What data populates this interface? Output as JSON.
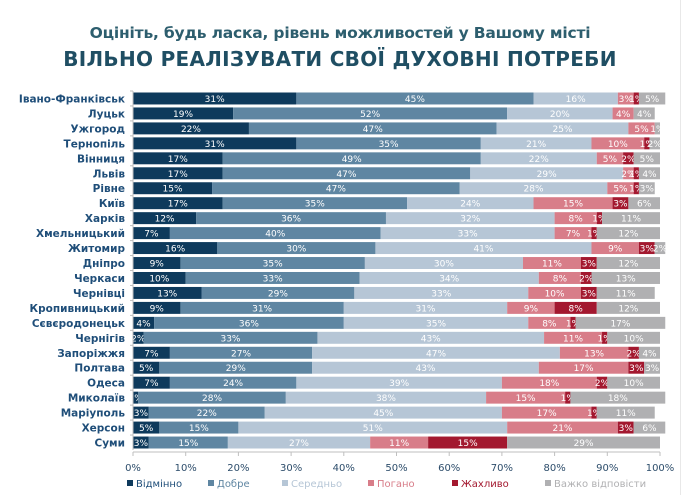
{
  "subtitle": "Оцініть, будь ласка, рівень можливостей у Вашому місті",
  "title": "ВІЛЬНО РЕАЛІЗУВАТИ СВОЇ ДУХОВНІ ПОТРЕБИ",
  "chart_data": {
    "type": "bar",
    "orientation": "horizontal",
    "stacked": "100%",
    "title": "ВІЛЬНО РЕАЛІЗУВАТИ СВОЇ ДУХОВНІ ПОТРЕБИ",
    "subtitle": "Оцініть, будь ласка, рівень можливостей у Вашому місті",
    "xlabel": "",
    "ylabel": "",
    "xlim": [
      0,
      100
    ],
    "x_ticks": [
      "0%",
      "10%",
      "20%",
      "30%",
      "40%",
      "50%",
      "60%",
      "70%",
      "80%",
      "90%",
      "100%"
    ],
    "grid": false,
    "legend_position": "bottom",
    "categories": [
      "Івано-Франківськ",
      "Луцьк",
      "Ужгород",
      "Тернопіль",
      "Вінниця",
      "Львів",
      "Рівне",
      "Київ",
      "Харків",
      "Хмельницький",
      "Житомир",
      "Дніпро",
      "Черкаси",
      "Чернівці",
      "Кропивницький",
      "Сєвєродонецьк",
      "Чернігів",
      "Запоріжжя",
      "Полтава",
      "Одеса",
      "Миколаїв",
      "Маріуполь",
      "Херсон",
      "Суми"
    ],
    "series": [
      {
        "name": "Відмінно",
        "color": "#0e3a5c",
        "label_color": "#1f4e79",
        "values": [
          31,
          19,
          22,
          31,
          17,
          17,
          15,
          17,
          12,
          7,
          16,
          9,
          10,
          13,
          9,
          4,
          2,
          7,
          5,
          7,
          1,
          3,
          5,
          3
        ]
      },
      {
        "name": "Добре",
        "color": "#5f86a2",
        "label_color": "#5f86a2",
        "values": [
          45,
          52,
          47,
          35,
          49,
          47,
          47,
          35,
          36,
          40,
          30,
          35,
          33,
          29,
          31,
          36,
          33,
          27,
          29,
          24,
          28,
          22,
          15,
          15
        ]
      },
      {
        "name": "Середньо",
        "color": "#b6c6d6",
        "label_color": "#b6c6d6",
        "values": [
          16,
          20,
          25,
          21,
          22,
          29,
          28,
          24,
          32,
          33,
          41,
          30,
          34,
          33,
          31,
          35,
          43,
          47,
          43,
          39,
          38,
          45,
          51,
          27
        ]
      },
      {
        "name": "Погано",
        "color": "#d87d89",
        "label_color": "#d87d89",
        "values": [
          3,
          4,
          5,
          10,
          5,
          2,
          5,
          15,
          8,
          7,
          9,
          11,
          8,
          10,
          9,
          8,
          11,
          13,
          17,
          18,
          15,
          17,
          21,
          11
        ]
      },
      {
        "name": "Жахливо",
        "color": "#a3182f",
        "label_color": "#a3182f",
        "values": [
          1,
          0,
          0,
          1,
          2,
          1,
          1,
          3,
          1,
          1,
          3,
          3,
          2,
          3,
          8,
          1,
          1,
          2,
          3,
          2,
          1,
          1,
          3,
          15
        ]
      },
      {
        "name": "Важко відповісти",
        "color": "#b0b0b2",
        "label_color": "#b0b0b2",
        "values": [
          5,
          4,
          1,
          2,
          5,
          4,
          3,
          6,
          11,
          12,
          2,
          12,
          13,
          11,
          12,
          17,
          10,
          4,
          3,
          10,
          18,
          11,
          6,
          29
        ]
      }
    ]
  }
}
